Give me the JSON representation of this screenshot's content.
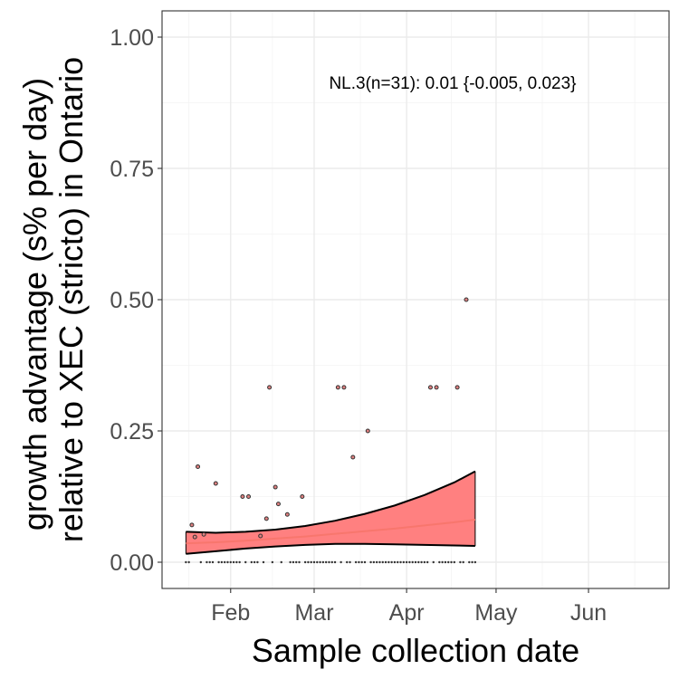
{
  "chart_data": {
    "type": "scatter",
    "xlabel": "Sample collection date",
    "ylabel_lines": [
      "growth advantage (s% per day)",
      "relative to XEC (stricto) in Ontario"
    ],
    "annotation": "NL.3(n=31): 0.01 {-0.005, 0.023}",
    "x_range": [
      "2025-01-09",
      "2025-06-28"
    ],
    "ylim": [
      -0.05,
      1.05
    ],
    "x_ticks": [
      {
        "date": "2025-02-01",
        "label": "Feb"
      },
      {
        "date": "2025-03-01",
        "label": "Mar"
      },
      {
        "date": "2025-04-01",
        "label": "Apr"
      },
      {
        "date": "2025-05-01",
        "label": "May"
      },
      {
        "date": "2025-06-01",
        "label": "Jun"
      }
    ],
    "y_ticks": [
      {
        "value": 0.0,
        "label": "0.00"
      },
      {
        "value": 0.25,
        "label": "0.25"
      },
      {
        "value": 0.5,
        "label": "0.50"
      },
      {
        "value": 0.75,
        "label": "0.75"
      },
      {
        "value": 1.0,
        "label": "1.00"
      }
    ],
    "grid": true,
    "colors": {
      "fit_line": "#f8766d",
      "ribbon": "#ff8080",
      "ribbon_edge": "#000000",
      "point": "#333333",
      "point_fill": "#e08080",
      "grid": "#ebebeb"
    },
    "points": [
      {
        "date": "2025-01-19",
        "y": 0.071
      },
      {
        "date": "2025-01-20",
        "y": 0.048
      },
      {
        "date": "2025-01-21",
        "y": 0.182
      },
      {
        "date": "2025-01-23",
        "y": 0.053
      },
      {
        "date": "2025-01-27",
        "y": 0.15
      },
      {
        "date": "2025-02-05",
        "y": 0.125
      },
      {
        "date": "2025-02-07",
        "y": 0.125
      },
      {
        "date": "2025-02-11",
        "y": 0.05
      },
      {
        "date": "2025-02-13",
        "y": 0.083
      },
      {
        "date": "2025-02-14",
        "y": 0.333
      },
      {
        "date": "2025-02-16",
        "y": 0.143
      },
      {
        "date": "2025-02-17",
        "y": 0.111
      },
      {
        "date": "2025-02-20",
        "y": 0.091
      },
      {
        "date": "2025-02-25",
        "y": 0.125
      },
      {
        "date": "2025-03-09",
        "y": 0.333
      },
      {
        "date": "2025-03-11",
        "y": 0.333
      },
      {
        "date": "2025-03-14",
        "y": 0.2
      },
      {
        "date": "2025-03-19",
        "y": 0.25
      },
      {
        "date": "2025-04-09",
        "y": 0.333
      },
      {
        "date": "2025-04-11",
        "y": 0.333
      },
      {
        "date": "2025-04-18",
        "y": 0.333
      },
      {
        "date": "2025-04-21",
        "y": 0.5
      }
    ],
    "zero_point_dates": [
      "2025-01-17",
      "2025-01-18",
      "2025-01-22",
      "2025-01-24",
      "2025-01-25",
      "2025-01-26",
      "2025-01-28",
      "2025-01-29",
      "2025-01-30",
      "2025-01-31",
      "2025-02-01",
      "2025-02-02",
      "2025-02-03",
      "2025-02-04",
      "2025-02-06",
      "2025-02-08",
      "2025-02-09",
      "2025-02-10",
      "2025-02-12",
      "2025-02-15",
      "2025-02-18",
      "2025-02-21",
      "2025-02-22",
      "2025-02-23",
      "2025-02-24",
      "2025-02-26",
      "2025-02-27",
      "2025-02-28",
      "2025-03-01",
      "2025-03-02",
      "2025-03-03",
      "2025-03-04",
      "2025-03-05",
      "2025-03-06",
      "2025-03-07",
      "2025-03-08",
      "2025-03-10",
      "2025-03-12",
      "2025-03-13",
      "2025-03-15",
      "2025-03-16",
      "2025-03-17",
      "2025-03-18",
      "2025-03-20",
      "2025-03-21",
      "2025-03-22",
      "2025-03-23",
      "2025-03-24",
      "2025-03-25",
      "2025-03-26",
      "2025-03-27",
      "2025-03-28",
      "2025-03-29",
      "2025-03-30",
      "2025-03-31",
      "2025-04-01",
      "2025-04-02",
      "2025-04-03",
      "2025-04-04",
      "2025-04-05",
      "2025-04-06",
      "2025-04-07",
      "2025-04-08",
      "2025-04-10",
      "2025-04-12",
      "2025-04-13",
      "2025-04-14",
      "2025-04-15",
      "2025-04-16",
      "2025-04-17",
      "2025-04-19",
      "2025-04-20",
      "2025-04-22",
      "2025-04-23",
      "2025-04-24"
    ],
    "fit": [
      {
        "date": "2025-01-17",
        "y": 0.036,
        "lower": 0.016,
        "upper": 0.058
      },
      {
        "date": "2025-01-27",
        "y": 0.038,
        "lower": 0.021,
        "upper": 0.056
      },
      {
        "date": "2025-02-06",
        "y": 0.041,
        "lower": 0.026,
        "upper": 0.058
      },
      {
        "date": "2025-02-16",
        "y": 0.045,
        "lower": 0.03,
        "upper": 0.062
      },
      {
        "date": "2025-02-26",
        "y": 0.049,
        "lower": 0.033,
        "upper": 0.069
      },
      {
        "date": "2025-03-08",
        "y": 0.054,
        "lower": 0.035,
        "upper": 0.079
      },
      {
        "date": "2025-03-18",
        "y": 0.059,
        "lower": 0.035,
        "upper": 0.092
      },
      {
        "date": "2025-03-28",
        "y": 0.064,
        "lower": 0.034,
        "upper": 0.108
      },
      {
        "date": "2025-04-07",
        "y": 0.07,
        "lower": 0.033,
        "upper": 0.128
      },
      {
        "date": "2025-04-17",
        "y": 0.076,
        "lower": 0.032,
        "upper": 0.152
      },
      {
        "date": "2025-04-24",
        "y": 0.081,
        "lower": 0.031,
        "upper": 0.173
      }
    ]
  }
}
